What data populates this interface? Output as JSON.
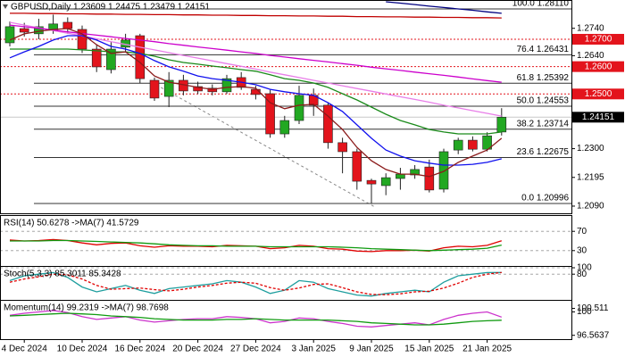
{
  "chart_data": [
    {
      "type": "candlestick",
      "title": "GBPUSD,Daily  1.23609 1.24475 1.23479 1.24151",
      "categories": [
        null,
        "4 Dec 2024",
        null,
        null,
        null,
        "10 Dec 2024",
        null,
        null,
        null,
        "16 Dec 2024",
        null,
        null,
        null,
        "20 Dec 2024",
        null,
        null,
        null,
        "27 Dec 2024",
        null,
        null,
        null,
        "3 Jan 2025",
        null,
        null,
        null,
        "9 Jan 2025",
        null,
        null,
        null,
        "15 Jan 2025",
        null,
        null,
        null,
        "21 Jan 2025",
        null
      ],
      "open": [
        1.2687,
        1.2739,
        1.272,
        1.2733,
        1.2762,
        1.2736,
        1.2664,
        1.2589,
        1.2671,
        1.2713,
        1.255,
        1.2491,
        1.255,
        1.2527,
        1.2521,
        1.2508,
        1.256,
        1.2517,
        1.2501,
        1.2354,
        1.2403,
        1.2495,
        1.2459,
        1.2322,
        1.2289,
        1.2184,
        1.2165,
        1.2191,
        1.2204,
        1.2233,
        1.2152,
        1.2295,
        1.2331,
        1.2298,
        1.2361
      ],
      "high": [
        1.2765,
        1.276,
        1.2775,
        1.279,
        1.278,
        1.275,
        1.268,
        1.269,
        1.272,
        1.272,
        1.256,
        1.258,
        1.257,
        1.2545,
        1.2535,
        1.257,
        1.258,
        1.253,
        1.2515,
        1.242,
        1.253,
        1.252,
        1.247,
        1.234,
        1.23,
        1.219,
        1.221,
        1.223,
        1.224,
        1.226,
        1.23,
        1.234,
        1.2345,
        1.236,
        1.2448
      ],
      "low": [
        1.2674,
        1.271,
        1.27,
        1.272,
        1.272,
        1.265,
        1.258,
        1.2575,
        1.2655,
        1.254,
        1.2475,
        1.2452,
        1.2495,
        1.25,
        1.2495,
        1.25,
        1.2515,
        1.248,
        1.234,
        1.234,
        1.239,
        1.242,
        1.23,
        1.221,
        1.215,
        1.21,
        1.213,
        1.215,
        1.219,
        1.214,
        1.214,
        1.228,
        1.229,
        1.229,
        1.2348
      ],
      "close": [
        1.2746,
        1.2726,
        1.2746,
        1.2756,
        1.2739,
        1.2664,
        1.2599,
        1.2664,
        1.2697,
        1.2556,
        1.2485,
        1.255,
        1.2511,
        1.2511,
        1.2508,
        1.2556,
        1.2524,
        1.2498,
        1.2354,
        1.2403,
        1.2495,
        1.2459,
        1.2322,
        1.2289,
        1.2181,
        1.2171,
        1.2194,
        1.2207,
        1.2224,
        1.2149,
        1.2289,
        1.2331,
        1.2298,
        1.2347,
        1.2415
      ],
      "up_color": "#22a822",
      "down_color": "#e3141c",
      "series": [
        {
          "color": "#c00000",
          "values": [
            1.2795,
            1.2795,
            1.2794,
            1.2794,
            1.2793,
            1.2793,
            1.2792,
            1.2792,
            1.2791,
            1.2791,
            1.279,
            1.279,
            1.2789,
            1.2789,
            1.2788,
            1.2788,
            1.2787,
            1.2787,
            1.2786,
            1.2786,
            1.2785,
            1.2785,
            1.2784,
            1.2784,
            1.2783,
            1.2783,
            1.2782,
            1.2782,
            1.2781,
            1.2781,
            1.278,
            1.278,
            1.2779,
            1.2779,
            1.2778
          ]
        },
        {
          "color": "#000080",
          "values": [
            null,
            null,
            null,
            null,
            null,
            null,
            null,
            null,
            null,
            null,
            null,
            null,
            null,
            null,
            null,
            null,
            null,
            null,
            null,
            null,
            null,
            null,
            null,
            null,
            null,
            null,
            1.2837,
            1.2832,
            1.2827,
            1.2821,
            1.2816,
            1.2811,
            1.2806,
            1.28,
            1.2795
          ]
        },
        {
          "color": "#e87ee8",
          "values": [
            1.2762,
            1.2752,
            1.2742,
            1.2732,
            1.2722,
            1.2712,
            1.2702,
            1.2691,
            1.2681,
            1.2671,
            1.2661,
            1.2651,
            1.2641,
            1.2631,
            1.2621,
            1.2611,
            1.2601,
            1.2591,
            1.258,
            1.257,
            1.256,
            1.255,
            1.254,
            1.253,
            1.252,
            1.251,
            1.25,
            1.249,
            1.248,
            1.247,
            1.2459,
            1.2449,
            1.2439,
            1.2429,
            1.2419
          ]
        },
        {
          "color": "#cc00cc",
          "values": [
            1.2752,
            1.2746,
            1.274,
            1.2734,
            1.2727,
            1.2721,
            1.2715,
            1.2709,
            1.2703,
            1.2697,
            1.2691,
            1.2684,
            1.2678,
            1.2672,
            1.2666,
            1.266,
            1.2654,
            1.2648,
            1.2641,
            1.2635,
            1.2629,
            1.2623,
            1.2617,
            1.2611,
            1.2605,
            1.2598,
            1.2592,
            1.2586,
            1.258,
            1.2574,
            1.2568,
            1.2562,
            1.2555,
            1.2549,
            1.2543
          ]
        },
        {
          "color": "#1a8a1a",
          "values": [
            1.2664,
            1.2664,
            1.2664,
            1.2664,
            1.2664,
            1.2661,
            1.2658,
            1.2654,
            1.2654,
            1.2648,
            1.2638,
            1.2625,
            1.2615,
            1.2609,
            1.2602,
            1.2596,
            1.2589,
            1.2583,
            1.257,
            1.2556,
            1.255,
            1.254,
            1.2524,
            1.2501,
            1.2478,
            1.2452,
            1.2426,
            1.2403,
            1.2387,
            1.237,
            1.2361,
            1.2354,
            1.2354,
            1.2354,
            1.2361
          ]
        },
        {
          "color": "#1010ee",
          "values": [
            1.2632,
            1.2654,
            1.2674,
            1.2697,
            1.2713,
            1.2713,
            1.2697,
            1.2674,
            1.2664,
            1.2648,
            1.2622,
            1.2599,
            1.2583,
            1.2566,
            1.2556,
            1.255,
            1.2543,
            1.2534,
            1.2517,
            1.2508,
            1.2501,
            1.2495,
            1.2468,
            1.2436,
            1.2387,
            1.2338,
            1.2295,
            1.2273,
            1.2256,
            1.2247,
            1.224,
            1.224,
            1.2243,
            1.225,
            1.2263
          ]
        },
        {
          "color": "#8b1a1a",
          "values": [
            1.2697,
            1.272,
            1.2729,
            1.2736,
            1.2739,
            1.272,
            1.268,
            1.2648,
            1.2654,
            1.2615,
            1.2566,
            1.2543,
            1.2534,
            1.2524,
            1.2517,
            1.2524,
            1.2527,
            1.2521,
            1.2468,
            1.2446,
            1.2459,
            1.2462,
            1.2419,
            1.237,
            1.2305,
            1.2256,
            1.2224,
            1.2207,
            1.2207,
            1.2198,
            1.2217,
            1.225,
            1.2273,
            1.2295,
            1.2338
          ]
        }
      ],
      "fib_levels": [
        {
          "value": 1.2811,
          "label": "100.0 1.28110"
        },
        {
          "value": 1.26431,
          "label": "76.4 1.26431"
        },
        {
          "value": 1.25392,
          "label": "61.8 1.25392"
        },
        {
          "value": 1.24553,
          "label": "50.0 1.24553"
        },
        {
          "value": 1.23714,
          "label": "38.2 1.23714"
        },
        {
          "value": 1.22675,
          "label": "23.6 1.22675"
        },
        {
          "value": 1.20996,
          "label": "0.0 1.20996"
        }
      ],
      "levels": [
        {
          "value": 1.27,
          "label": "1.2700"
        },
        {
          "value": 1.26,
          "label": "1.2600"
        },
        {
          "value": 1.25,
          "label": "1.2500"
        }
      ],
      "level_color": "#e3141c",
      "last_price": 1.24151,
      "ylim": [
        1.2067,
        1.2837
      ],
      "yticks": [
        {
          "value": 1.274,
          "label": "1.2740"
        },
        {
          "value": 1.264,
          "label": "1.2640"
        },
        {
          "value": 1.23,
          "label": "1.2300"
        },
        1.2195,
        {
          "value": 1.209,
          "label": "1.2090"
        }
      ],
      "grid": false
    },
    {
      "type": "line",
      "title": "RSI(14) 50.6278 ->MA(7) 41.5729",
      "ylim": [
        0,
        100
      ],
      "yticks": [
        70,
        30
      ],
      "grid": true,
      "series": [
        {
          "color": "#e00000",
          "values": [
            52,
            50,
            51,
            53,
            51,
            46,
            42,
            45,
            46,
            40,
            37,
            40,
            39,
            39,
            38,
            41,
            40,
            39,
            34,
            36,
            41,
            39,
            34,
            33,
            29,
            28,
            30,
            30,
            31,
            29,
            36,
            39,
            38,
            41,
            50.63
          ]
        },
        {
          "color": "#109a10",
          "values": [
            50,
            50,
            50,
            51,
            51,
            50,
            49,
            48,
            47,
            46,
            44,
            42,
            41,
            40,
            40,
            39,
            39,
            39,
            38,
            38,
            38,
            38,
            38,
            37,
            36,
            34,
            33,
            32,
            31,
            30,
            31,
            32,
            33,
            35,
            41.57
          ]
        }
      ]
    },
    {
      "type": "line",
      "title": "Stoch(5,3,3) 85.3011 85.3428",
      "ylim": [
        0,
        100
      ],
      "yticks": [
        100,
        80
      ],
      "grid": true,
      "series": [
        {
          "color": "#1e9e9e",
          "values": [
            60,
            75,
            80,
            85,
            70,
            40,
            25,
            35,
            45,
            30,
            20,
            35,
            40,
            45,
            50,
            60,
            55,
            40,
            20,
            30,
            60,
            55,
            35,
            25,
            15,
            12,
            20,
            25,
            30,
            25,
            55,
            75,
            80,
            85,
            85.3
          ]
        },
        {
          "color": "#e00000",
          "dashed": true,
          "values": [
            55,
            65,
            72,
            80,
            78,
            65,
            45,
            33,
            35,
            37,
            32,
            28,
            33,
            40,
            45,
            52,
            55,
            52,
            38,
            30,
            37,
            48,
            50,
            38,
            25,
            17,
            16,
            19,
            25,
            27,
            37,
            52,
            70,
            80,
            85.34
          ]
        }
      ]
    },
    {
      "type": "line",
      "title": "Momentum(14) 99.2319 ->MA(7) 98.7698",
      "ylim": [
        96,
        101.5
      ],
      "yticks": [
        100.511,
        100,
        96.5637
      ],
      "grid": false,
      "series": [
        {
          "color": "#cc33cc",
          "values": [
            99.5,
            99.8,
            100.0,
            100.2,
            99.9,
            99.3,
            98.9,
            99.1,
            99.3,
            98.8,
            98.5,
            98.7,
            98.9,
            99.0,
            99.0,
            99.3,
            99.2,
            99.0,
            98.4,
            98.6,
            99.1,
            99.0,
            98.6,
            98.3,
            97.9,
            97.8,
            98.0,
            98.2,
            98.4,
            98.1,
            98.9,
            99.5,
            99.8,
            100.0,
            99.23
          ]
        },
        {
          "color": "#109a10",
          "values": [
            99.4,
            99.5,
            99.6,
            99.7,
            99.8,
            99.7,
            99.6,
            99.4,
            99.3,
            99.2,
            99.0,
            98.9,
            98.8,
            98.8,
            98.8,
            98.9,
            98.9,
            99.0,
            98.9,
            98.8,
            98.8,
            98.8,
            98.8,
            98.7,
            98.6,
            98.4,
            98.3,
            98.2,
            98.1,
            98.1,
            98.2,
            98.4,
            98.6,
            98.7,
            98.77
          ]
        }
      ]
    }
  ]
}
